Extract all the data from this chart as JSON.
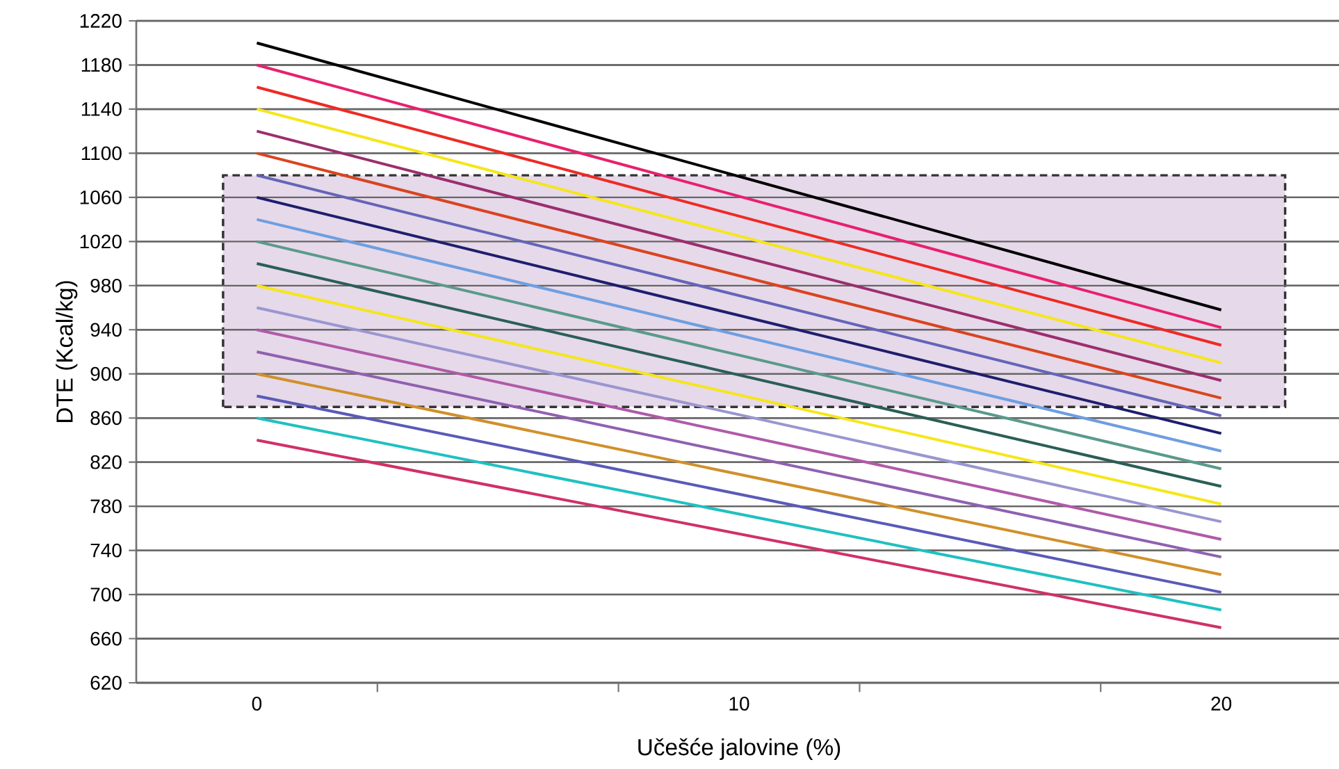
{
  "chart_data": {
    "type": "line",
    "xlabel": "Učešće jalovine (%)",
    "ylabel": "DTE (Kcal/kg)",
    "x": [
      0,
      20
    ],
    "xlim": [
      -2.5,
      22.5
    ],
    "xticks": [
      0,
      10,
      20,
      {
        "value": 2.5,
        "label": null
      },
      {
        "value": 7.5,
        "label": null
      },
      {
        "value": 12.5,
        "label": null
      },
      {
        "value": 17.5,
        "label": null
      }
    ],
    "ylim": [
      620,
      1220
    ],
    "yticks": [
      620,
      660,
      700,
      740,
      780,
      820,
      860,
      900,
      940,
      980,
      1020,
      1060,
      1100,
      1140,
      1180,
      1220
    ],
    "grid": "y",
    "marker": "none",
    "line_style": "solid",
    "bands": [
      {
        "axis": "y",
        "from": 870,
        "to": 1080,
        "color": "#e6d9ea"
      }
    ],
    "series": [
      {
        "color": "#000000",
        "values": [
          1200,
          958
        ]
      },
      {
        "color": "#e8206e",
        "values": [
          1180,
          942
        ]
      },
      {
        "color": "#ee2a24",
        "values": [
          1160,
          926
        ]
      },
      {
        "color": "#f5e61a",
        "values": [
          1140,
          910
        ]
      },
      {
        "color": "#9b2e6e",
        "values": [
          1120,
          894
        ]
      },
      {
        "color": "#d9441f",
        "values": [
          1100,
          878
        ]
      },
      {
        "color": "#6464b8",
        "values": [
          1080,
          862
        ]
      },
      {
        "color": "#1e1e6e",
        "values": [
          1060,
          846
        ]
      },
      {
        "color": "#6e9ee0",
        "values": [
          1040,
          830
        ]
      },
      {
        "color": "#5a9a8a",
        "values": [
          1020,
          814
        ]
      },
      {
        "color": "#2a5e58",
        "values": [
          1000,
          798
        ]
      },
      {
        "color": "#f5e61a",
        "values": [
          980,
          782
        ]
      },
      {
        "color": "#9a96d0",
        "values": [
          960,
          766
        ]
      },
      {
        "color": "#b05aa8",
        "values": [
          940,
          750
        ]
      },
      {
        "color": "#9060b0",
        "values": [
          920,
          734
        ]
      },
      {
        "color": "#d0902a",
        "values": [
          900,
          718
        ]
      },
      {
        "color": "#5a5ab8",
        "values": [
          880,
          702
        ]
      },
      {
        "color": "#20c0c0",
        "values": [
          860,
          686
        ]
      },
      {
        "color": "#d0306a",
        "values": [
          840,
          670
        ]
      }
    ]
  }
}
